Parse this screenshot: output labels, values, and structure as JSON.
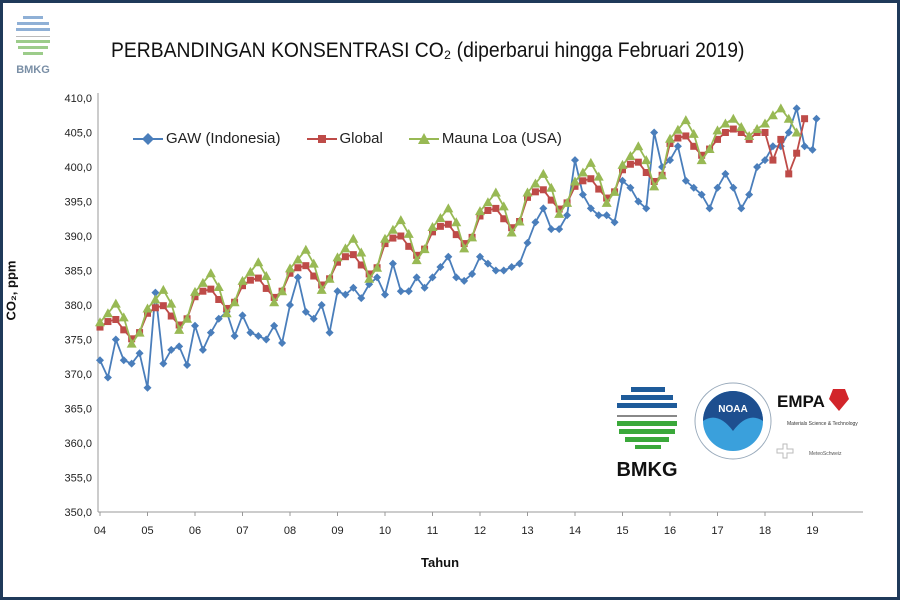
{
  "header": {
    "logo_text": "BMKG"
  },
  "logos": {
    "bmkg": "BMKG",
    "noaa": "NOAA",
    "empa": "EMPA",
    "empa_sub": "Materials Science & Technology",
    "meteoswiss": "MeteoSchweiz"
  },
  "chart_data": {
    "type": "line",
    "title": "PERBANDINGAN KONSENTRASI CO₂  (diperbarui hingga Februari 2019)",
    "xlabel": "Tahun",
    "ylabel": "CO₂, ppm",
    "ylim": [
      350,
      410
    ],
    "yticks": [
      "350,0",
      "355,0",
      "360,0",
      "365,0",
      "370,0",
      "375,0",
      "380,0",
      "385,0",
      "390,0",
      "395,0",
      "400,0",
      "405,0",
      "410,0"
    ],
    "xticks": [
      "04",
      "05",
      "06",
      "07",
      "08",
      "09",
      "10",
      "11",
      "12",
      "13",
      "14",
      "15",
      "16",
      "17",
      "18",
      "19"
    ],
    "grid": false,
    "legend_placement": "top-left",
    "months": [
      "01",
      "03",
      "05",
      "07",
      "09",
      "11"
    ],
    "series": [
      {
        "name": "GAW (Indonesia)",
        "color": "#4a7ebb",
        "marker": "diamond",
        "start_year": 2004,
        "values": [
          372,
          369.5,
          375,
          372,
          371.5,
          373,
          368,
          381.8,
          371.5,
          373.5,
          374,
          371.3,
          377,
          373.5,
          376,
          378,
          379,
          375.5,
          378.5,
          376,
          375.5,
          375,
          377,
          374.5,
          380,
          384,
          379,
          378,
          380,
          376,
          382,
          381.5,
          382.5,
          381,
          383,
          384,
          381.5,
          386,
          382,
          382,
          384,
          382.5,
          384,
          385.5,
          387,
          384,
          383.5,
          384.5,
          387,
          386,
          385,
          385,
          385.5,
          386,
          389,
          392,
          394,
          391,
          391,
          393,
          401,
          396,
          394,
          393,
          393,
          392,
          398,
          397,
          395,
          394,
          405,
          400,
          401,
          403,
          398,
          397,
          396,
          394,
          397,
          399,
          397,
          394,
          396,
          400,
          401,
          403,
          403,
          405,
          408.5,
          403
        ],
        "extra": [
          {
            "date": "2019-01",
            "value": 402.5
          },
          {
            "date": "2019-02",
            "value": 407
          }
        ]
      },
      {
        "name": "Global",
        "color": "#be4b48",
        "marker": "square",
        "start_year": 2004,
        "values": [
          376.8,
          377.6,
          377.9,
          376.4,
          375.1,
          376.0,
          378.8,
          379.6,
          379.9,
          378.4,
          377.1,
          378.0,
          381.2,
          382.0,
          382.3,
          380.8,
          379.5,
          380.4,
          382.8,
          383.6,
          383.9,
          382.4,
          381.1,
          382.0,
          384.6,
          385.4,
          385.7,
          384.2,
          382.9,
          383.8,
          386.2,
          387.0,
          387.3,
          385.8,
          384.5,
          385.4,
          388.9,
          389.7,
          390.0,
          388.5,
          387.2,
          388.1,
          390.6,
          391.4,
          391.7,
          390.2,
          388.9,
          389.8,
          392.9,
          393.7,
          394.0,
          392.5,
          391.2,
          392.1,
          395.6,
          396.4,
          396.7,
          395.2,
          393.9,
          394.8,
          397.2,
          398.0,
          398.3,
          396.8,
          395.5,
          396.4,
          399.6,
          400.4,
          400.7,
          399.2,
          397.9,
          398.8,
          403.4,
          404.2,
          404.5,
          403.0,
          401.7,
          402.6,
          404.0,
          405.0,
          405.5,
          405.0,
          404.0,
          405.0,
          405.0,
          401.0,
          404.0,
          399.0,
          402.0,
          407.0
        ]
      },
      {
        "name": "Mauna Loa (USA)",
        "color": "#98b954",
        "marker": "triangle",
        "start_year": 2004,
        "values": [
          377.5,
          378.8,
          380.2,
          378.2,
          374.4,
          376.0,
          379.5,
          380.8,
          382.2,
          380.2,
          376.4,
          378.0,
          381.9,
          383.2,
          384.6,
          382.6,
          378.8,
          380.4,
          383.5,
          384.8,
          386.2,
          384.2,
          380.4,
          382.0,
          385.3,
          386.6,
          388.0,
          386.0,
          382.2,
          383.8,
          386.9,
          388.2,
          389.6,
          387.6,
          383.8,
          385.4,
          389.6,
          390.9,
          392.3,
          390.3,
          386.5,
          388.1,
          391.3,
          392.6,
          394.0,
          392.0,
          388.2,
          389.8,
          393.6,
          394.9,
          396.3,
          394.3,
          390.5,
          392.1,
          396.3,
          397.6,
          399.0,
          397.0,
          393.2,
          394.8,
          397.9,
          399.2,
          400.6,
          398.6,
          394.8,
          396.4,
          400.3,
          401.6,
          403.0,
          401.0,
          397.2,
          398.8,
          404.1,
          405.4,
          406.8,
          404.8,
          401.0,
          402.6,
          405.3,
          406.3,
          407.0,
          405.8,
          404.5,
          405.5,
          406.3,
          407.5,
          408.5,
          407.0,
          405.0
        ]
      }
    ]
  }
}
